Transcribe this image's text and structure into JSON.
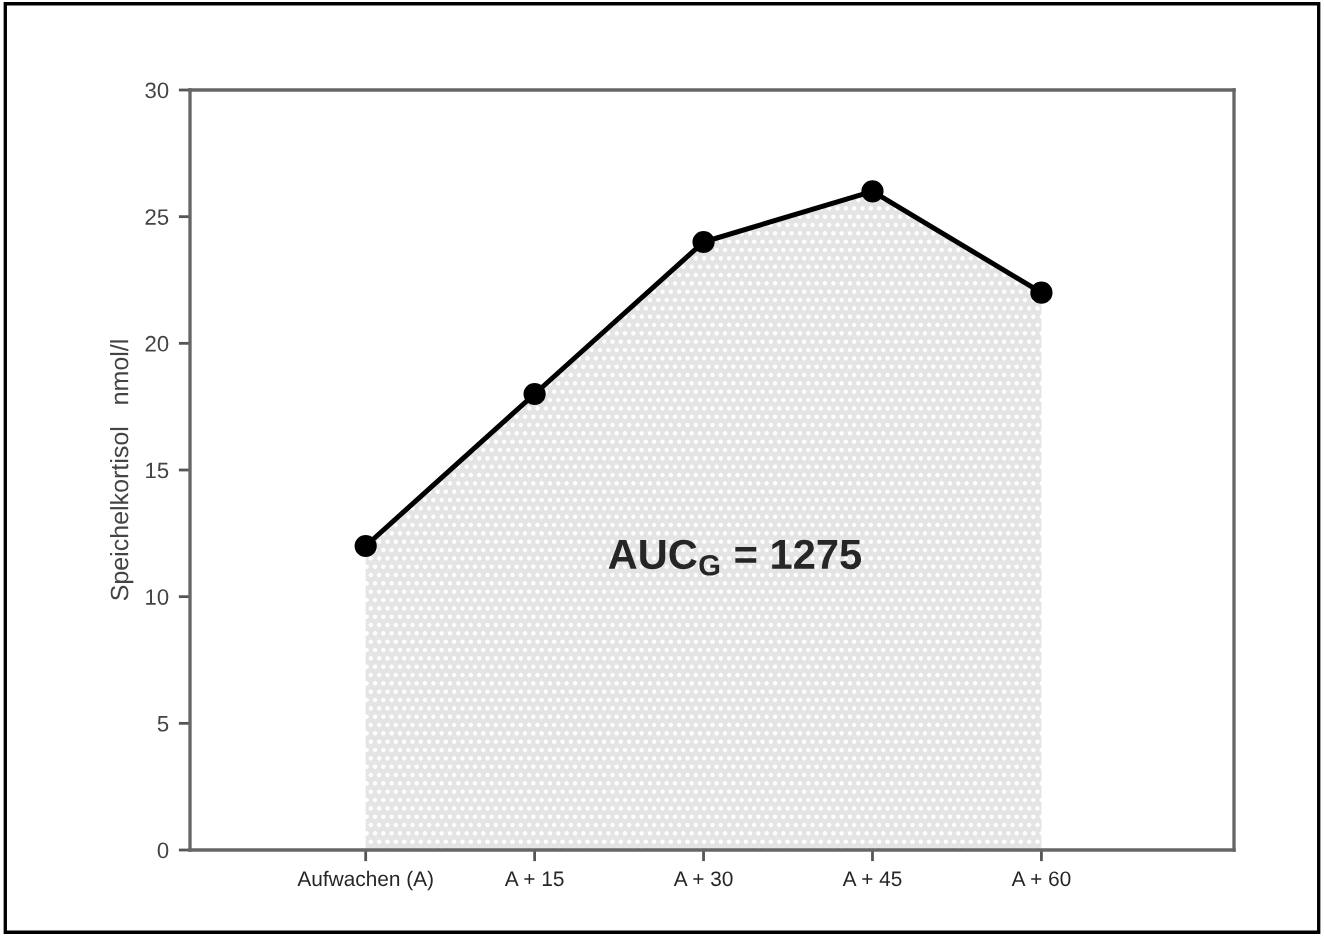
{
  "chart_data": {
    "type": "area",
    "ylabel": "Speichelkortisol   nmol/l",
    "categories": [
      "Aufwachen (A)",
      "A + 15",
      "A + 30",
      "A + 45",
      "A + 60"
    ],
    "series": [
      {
        "color": "#000000",
        "values": [
          12,
          18,
          24,
          26,
          22
        ]
      }
    ],
    "ylim": [
      0,
      30
    ],
    "yticks": [
      0,
      5,
      10,
      15,
      20,
      25,
      30
    ],
    "marker": "circle",
    "line_style": "solid",
    "grid": false,
    "legend": false,
    "annotations": [
      "AUC$_{G}$ = 1275"
    ]
  }
}
